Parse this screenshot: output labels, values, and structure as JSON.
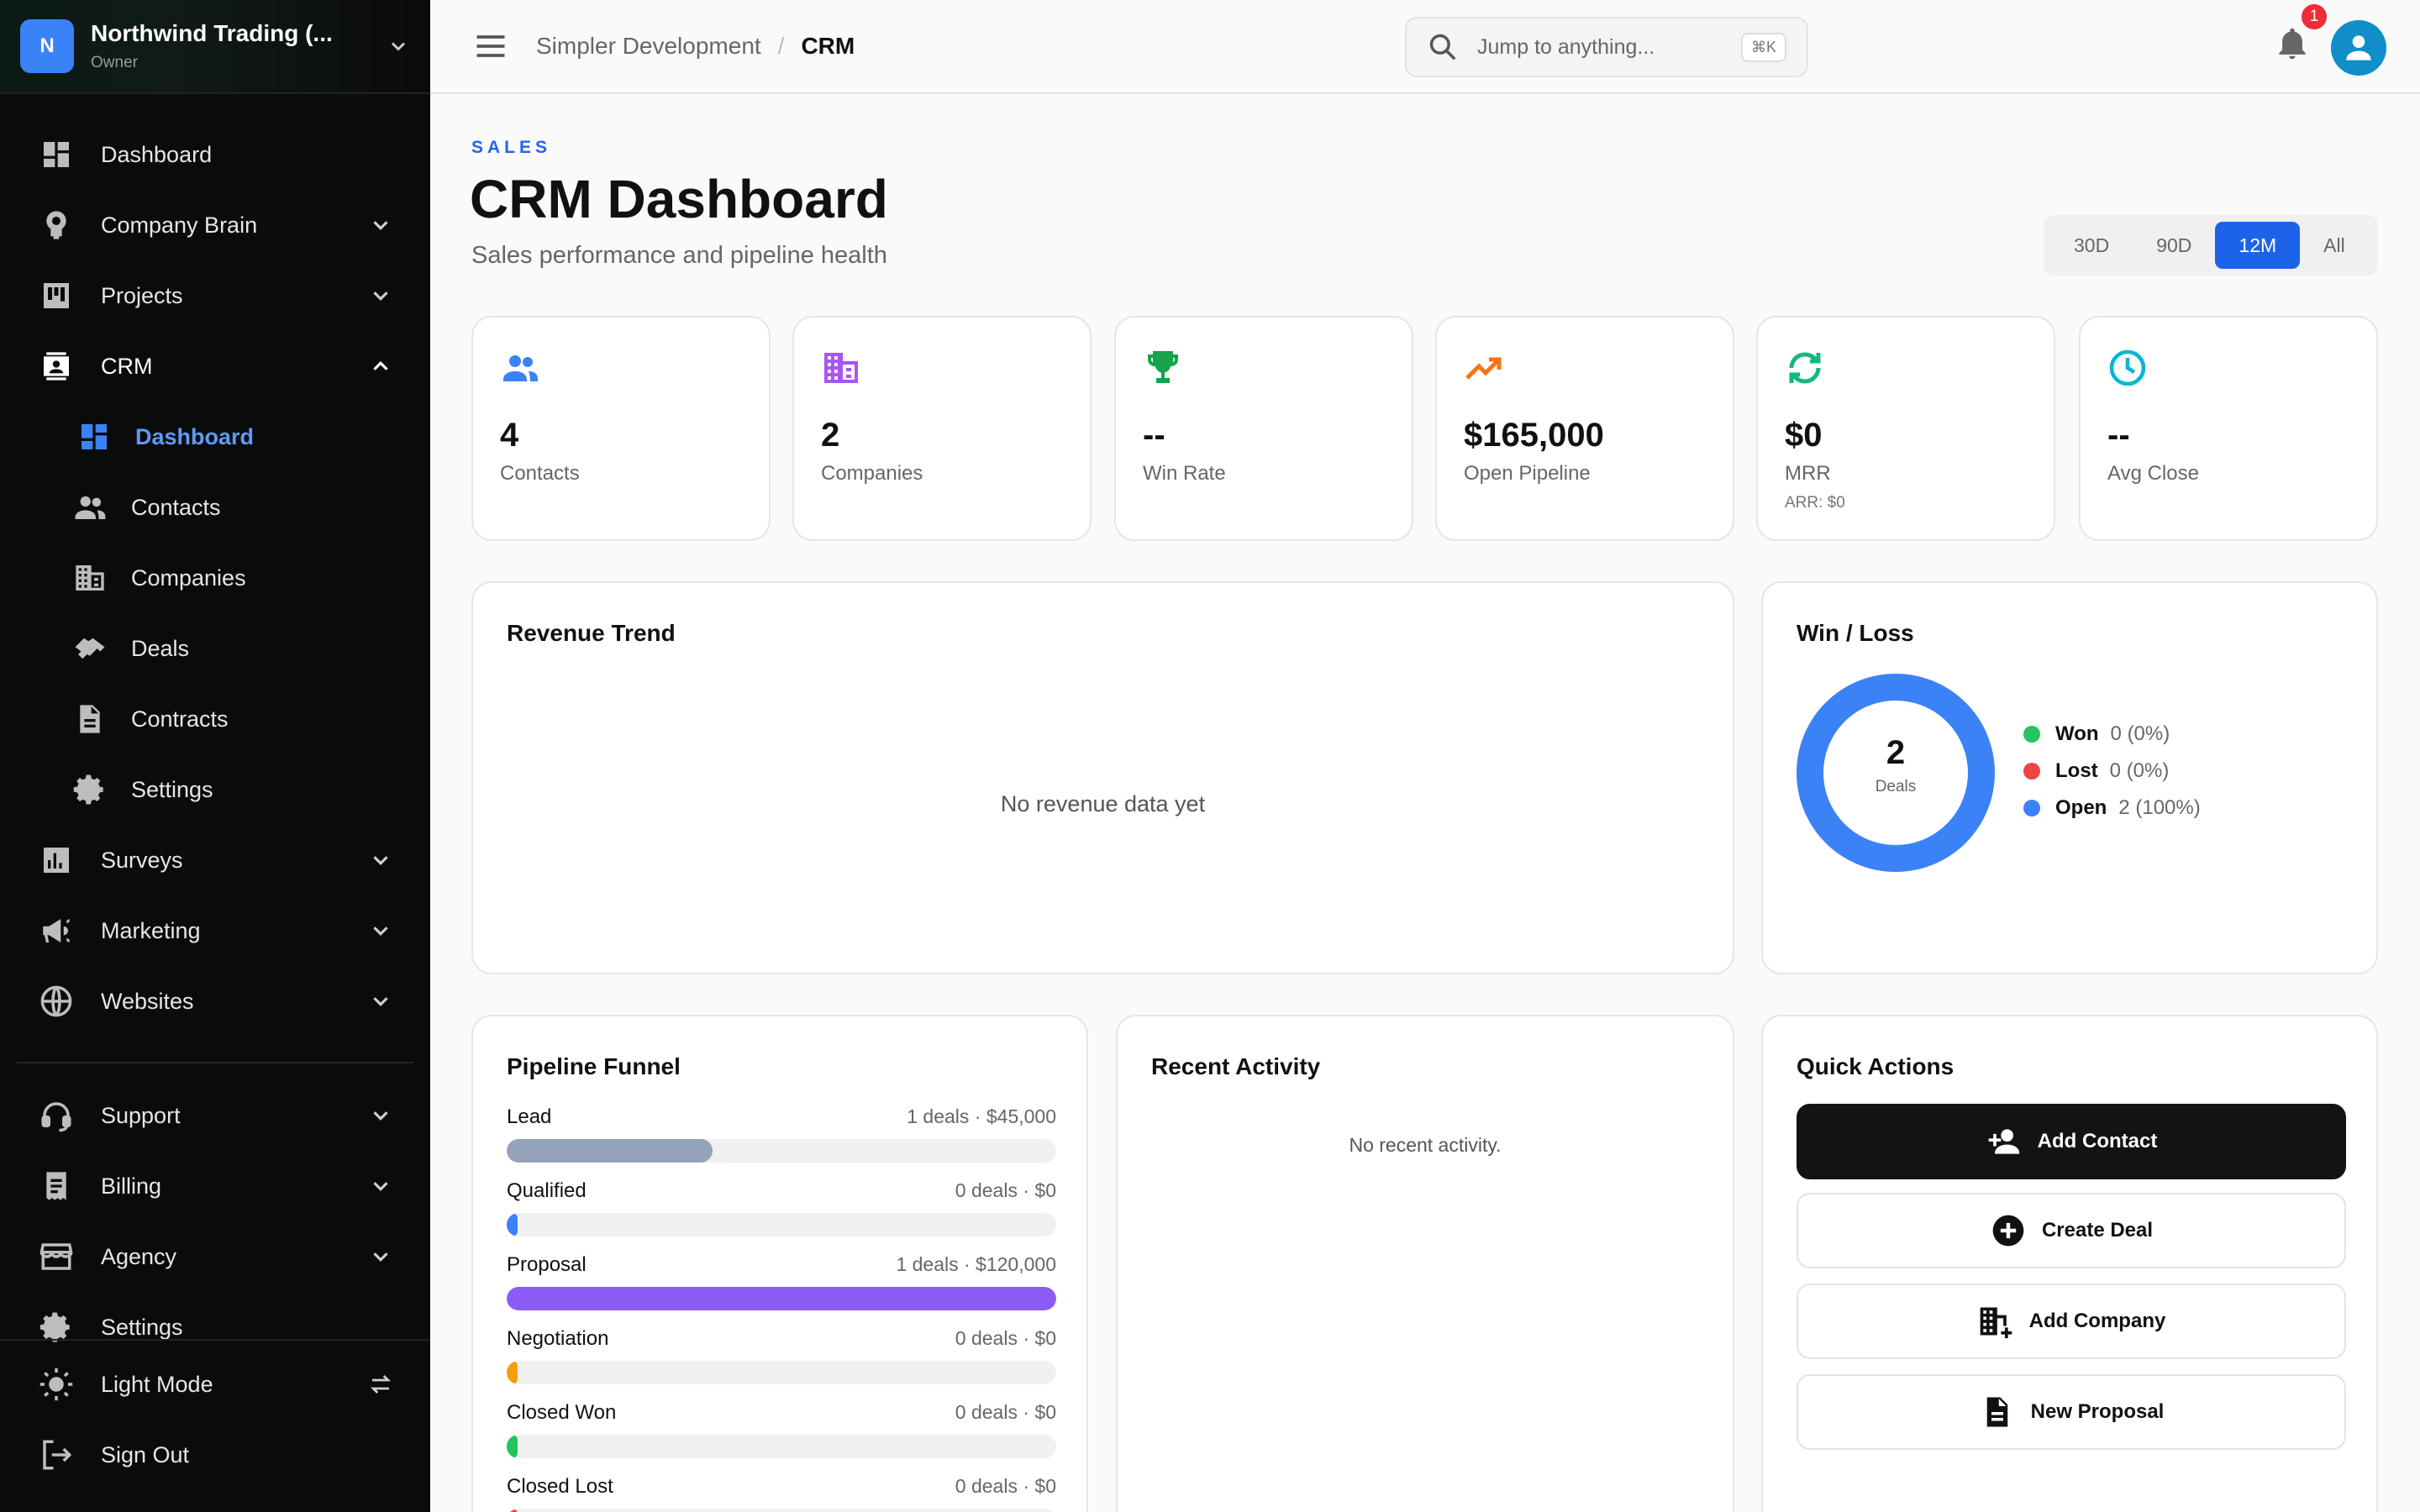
{
  "org": {
    "initial": "N",
    "name": "Northwind Trading (...",
    "role": "Owner"
  },
  "sidebar": {
    "items": [
      {
        "label": "Dashboard"
      },
      {
        "label": "Company Brain"
      },
      {
        "label": "Projects"
      },
      {
        "label": "CRM"
      },
      {
        "label": "Dashboard"
      },
      {
        "label": "Contacts"
      },
      {
        "label": "Companies"
      },
      {
        "label": "Deals"
      },
      {
        "label": "Contracts"
      },
      {
        "label": "Settings"
      },
      {
        "label": "Surveys"
      },
      {
        "label": "Marketing"
      },
      {
        "label": "Websites"
      },
      {
        "label": "Support"
      },
      {
        "label": "Billing"
      },
      {
        "label": "Agency"
      },
      {
        "label": "Settings"
      }
    ],
    "bottom": {
      "light_mode": "Light Mode",
      "sign_out": "Sign Out"
    }
  },
  "header": {
    "breadcrumb": [
      "Simpler Development",
      "/",
      "CRM"
    ],
    "search_placeholder": "Jump to anything...",
    "search_shortcut": "⌘K",
    "notification_count": "1"
  },
  "page": {
    "eyebrow": "SALES",
    "title": "CRM Dashboard",
    "subtitle": "Sales performance and pipeline health",
    "ranges": [
      "30D",
      "90D",
      "12M",
      "All"
    ],
    "selected_range": "12M"
  },
  "stats": [
    {
      "value": "4",
      "label": "Contacts",
      "icon": "people-icon",
      "color": "#3b82f6"
    },
    {
      "value": "2",
      "label": "Companies",
      "icon": "building-icon",
      "color": "#a855f7"
    },
    {
      "value": "--",
      "label": "Win Rate",
      "icon": "trophy-icon",
      "color": "#16a34a"
    },
    {
      "value": "$165,000",
      "label": "Open Pipeline",
      "icon": "trending-up-icon",
      "color": "#f97316"
    },
    {
      "value": "$0",
      "label": "MRR",
      "extra": "ARR: $0",
      "icon": "refresh-icon",
      "color": "#10b981"
    },
    {
      "value": "--",
      "label": "Avg Close",
      "icon": "clock-icon",
      "color": "#06b6d4"
    }
  ],
  "revenue": {
    "title": "Revenue Trend",
    "empty": "No revenue data yet"
  },
  "winloss": {
    "title": "Win / Loss",
    "total": "2",
    "total_label": "Deals",
    "legend": [
      {
        "name": "Won",
        "value": "0 (0%)",
        "color": "#22c55e",
        "count": 0
      },
      {
        "name": "Lost",
        "value": "0 (0%)",
        "color": "#ef4444",
        "count": 0
      },
      {
        "name": "Open",
        "value": "2 (100%)",
        "color": "#3b82f6",
        "count": 2
      }
    ]
  },
  "funnel": {
    "title": "Pipeline Funnel",
    "stages": [
      {
        "name": "Lead",
        "summary": "1 deals · $45,000",
        "fraction": 0.375,
        "color": "#94a3b8"
      },
      {
        "name": "Qualified",
        "summary": "0 deals · $0",
        "fraction": 0.02,
        "color": "#3b82f6"
      },
      {
        "name": "Proposal",
        "summary": "1 deals · $120,000",
        "fraction": 1.0,
        "color": "#8b5cf6"
      },
      {
        "name": "Negotiation",
        "summary": "0 deals · $0",
        "fraction": 0.02,
        "color": "#f59e0b"
      },
      {
        "name": "Closed Won",
        "summary": "0 deals · $0",
        "fraction": 0.02,
        "color": "#22c55e"
      },
      {
        "name": "Closed Lost",
        "summary": "0 deals · $0",
        "fraction": 0.02,
        "color": "#ef4444"
      }
    ]
  },
  "activity": {
    "title": "Recent Activity",
    "empty": "No recent activity."
  },
  "quick_actions": {
    "title": "Quick Actions",
    "buttons": [
      {
        "label": "Add Contact",
        "icon": "person-add-icon"
      },
      {
        "label": "Create Deal",
        "icon": "plus-circle-icon"
      },
      {
        "label": "Add Company",
        "icon": "building-add-icon"
      },
      {
        "label": "New Proposal",
        "icon": "document-icon"
      }
    ]
  }
}
